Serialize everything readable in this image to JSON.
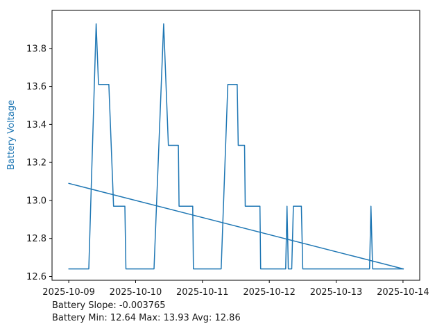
{
  "chart_data": {
    "type": "line",
    "title": "",
    "xlabel": "",
    "ylabel": "Battery Voltage",
    "ylabel_color": "#1f77b4",
    "line_color": "#1f77b4",
    "axis_color": "#000000",
    "tick_label_color": "#1a1a1a",
    "grid": false,
    "legend": "none",
    "xlim_days": [
      -0.25,
      5.25
    ],
    "ylim": [
      12.58,
      14.0
    ],
    "x_ticks": [
      0,
      1,
      2,
      3,
      4,
      5
    ],
    "x_tick_labels": [
      "2025-10-09",
      "2025-10-10",
      "2025-10-11",
      "2025-10-12",
      "2025-10-13",
      "2025-10-14"
    ],
    "y_ticks": [
      12.6,
      12.8,
      13.0,
      13.2,
      13.4,
      13.6,
      13.8
    ],
    "y_tick_labels": [
      "12.6",
      "12.8",
      "13.0",
      "13.2",
      "13.4",
      "13.6",
      "13.8"
    ],
    "series": [
      {
        "name": "battery-voltage",
        "points": [
          [
            0.0,
            12.64
          ],
          [
            0.3,
            12.64
          ],
          [
            0.41,
            13.93
          ],
          [
            0.445,
            13.61
          ],
          [
            0.6,
            13.61
          ],
          [
            0.67,
            12.97
          ],
          [
            0.84,
            12.97
          ],
          [
            0.855,
            12.64
          ],
          [
            1.275,
            12.64
          ],
          [
            1.42,
            13.93
          ],
          [
            1.49,
            13.29
          ],
          [
            1.64,
            13.29
          ],
          [
            1.65,
            12.97
          ],
          [
            1.855,
            12.97
          ],
          [
            1.865,
            12.64
          ],
          [
            2.28,
            12.64
          ],
          [
            2.38,
            13.61
          ],
          [
            2.52,
            13.61
          ],
          [
            2.535,
            13.29
          ],
          [
            2.63,
            13.29
          ],
          [
            2.64,
            12.97
          ],
          [
            2.86,
            12.97
          ],
          [
            2.87,
            12.64
          ],
          [
            3.245,
            12.64
          ],
          [
            3.265,
            12.97
          ],
          [
            3.285,
            12.64
          ],
          [
            3.335,
            12.64
          ],
          [
            3.36,
            12.97
          ],
          [
            3.48,
            12.97
          ],
          [
            3.5,
            12.64
          ],
          [
            4.5,
            12.64
          ],
          [
            4.52,
            12.97
          ],
          [
            4.545,
            12.64
          ],
          [
            5.005,
            12.64
          ]
        ]
      },
      {
        "name": "trend",
        "points": [
          [
            0.0,
            13.09
          ],
          [
            5.005,
            12.64
          ]
        ]
      }
    ],
    "footer": [
      "Battery Slope: -0.003765",
      "Battery Min: 12.64 Max: 13.93 Avg: 12.86"
    ],
    "stats": {
      "slope": -0.003765,
      "min": 12.64,
      "max": 13.93,
      "avg": 12.86
    }
  }
}
